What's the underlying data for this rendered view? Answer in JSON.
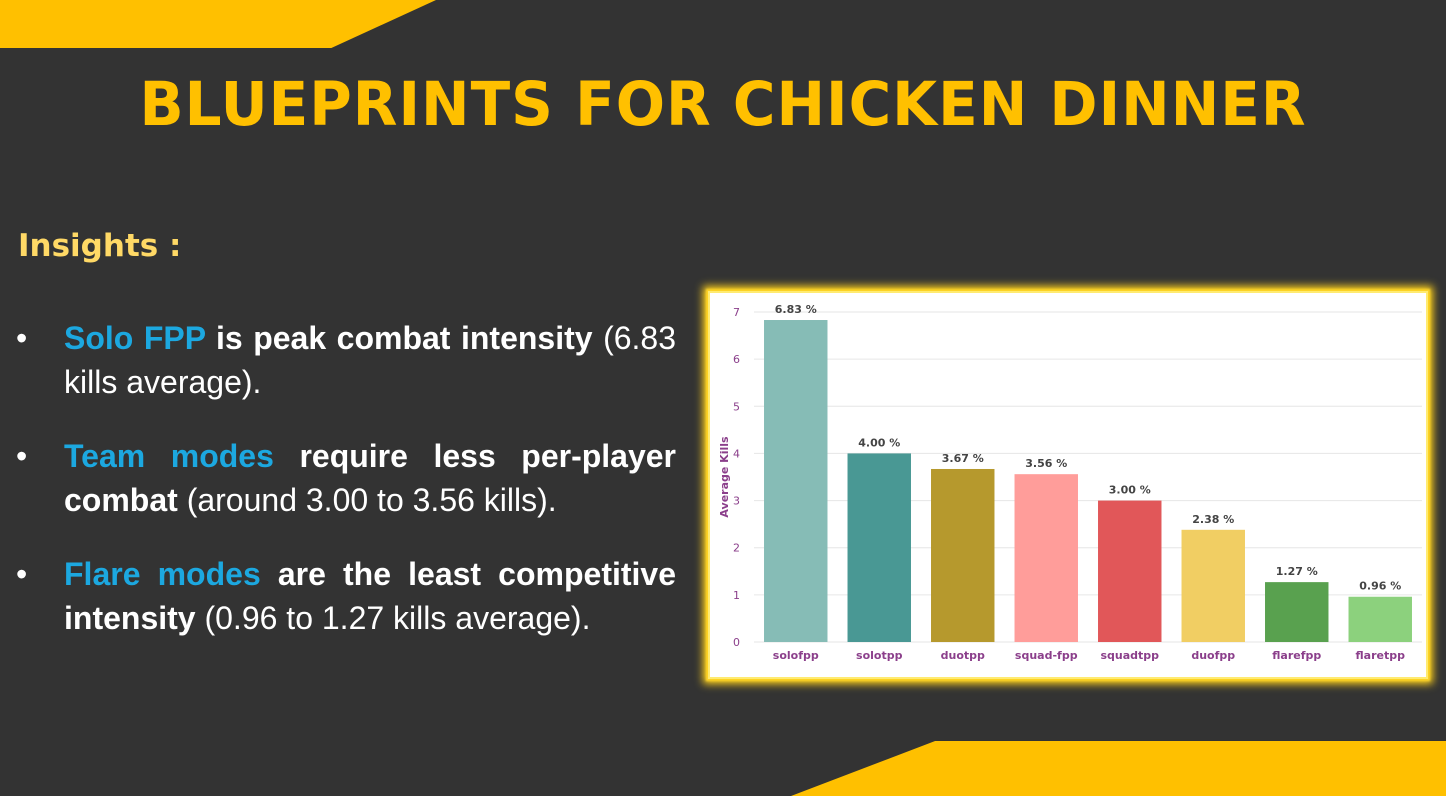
{
  "slide": {
    "title": "BLUEPRINTS FOR CHICKEN DINNER",
    "accent_color": "#FFC000",
    "background_color": "#333333",
    "highlight_color": "#1CA8E0"
  },
  "insights": {
    "heading": "Insights :",
    "bullet_symbol": "•",
    "items": [
      {
        "highlight": "Solo FPP",
        "bold": " is peak combat intensity",
        "rest": " (6.83 kills average)."
      },
      {
        "highlight": "Team modes",
        "bold": " require less per-player combat",
        "rest": " (around 3.00 to 3.56 kills)."
      },
      {
        "highlight": "Flare modes",
        "bold": " are the least competitive intensity",
        "rest": " (0.96 to 1.27 kills average)."
      }
    ]
  },
  "chart_data": {
    "type": "bar",
    "categories": [
      "solofpp",
      "solotpp",
      "duotpp",
      "squad-fpp",
      "squadtpp",
      "duofpp",
      "flarefpp",
      "flaretpp"
    ],
    "values": [
      6.83,
      4.0,
      3.67,
      3.56,
      3.0,
      2.38,
      1.27,
      0.96
    ],
    "value_labels": [
      "6.83 %",
      "4.00 %",
      "3.67 %",
      "3.56 %",
      "3.00 %",
      "2.38 %",
      "1.27 %",
      "0.96 %"
    ],
    "colors": [
      "#86BCB6",
      "#499894",
      "#B6992D",
      "#FF9D9A",
      "#E15759",
      "#F1CE63",
      "#59A14F",
      "#8CD17D"
    ],
    "ylabel": "Average Kills",
    "xlabel": "",
    "ylim": [
      0,
      7
    ],
    "yticks": [
      "0",
      "1",
      "2",
      "3",
      "4",
      "5",
      "6",
      "7"
    ],
    "grid": true
  }
}
